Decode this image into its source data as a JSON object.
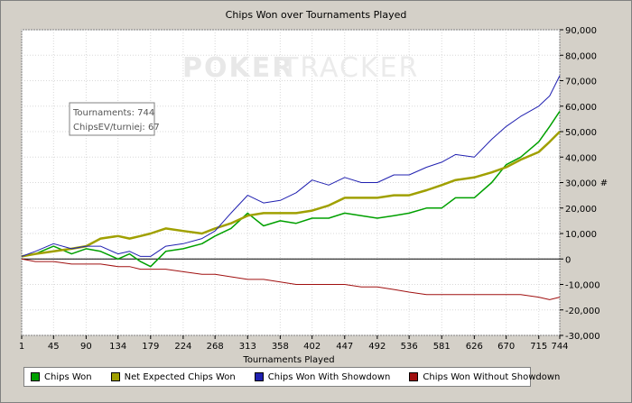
{
  "chart_data": {
    "type": "line",
    "title": "Chips Won over Tournaments Played",
    "xlabel": "Tournaments Played",
    "ylabel": "#",
    "xlim": [
      1,
      744
    ],
    "ylim": [
      -30000,
      90000
    ],
    "x_ticks": [
      "1",
      "45",
      "90",
      "134",
      "179",
      "224",
      "268",
      "313",
      "358",
      "402",
      "447",
      "492",
      "536",
      "581",
      "626",
      "670",
      "715",
      "744"
    ],
    "y_ticks": [
      "90,000",
      "80,000",
      "70,000",
      "60,000",
      "50,000",
      "40,000",
      "30,000",
      "20,000",
      "10,000",
      "0",
      "-10,000",
      "-20,000",
      "-30,000"
    ],
    "watermark": {
      "part1": "POKER",
      "part2": "TRACKER"
    },
    "info_box": {
      "line1": "Tournaments: 744",
      "line2": "ChipsEV/turniej: 67"
    },
    "grid": true,
    "legend_position": "bottom",
    "x": [
      1,
      20,
      45,
      70,
      90,
      110,
      134,
      150,
      165,
      179,
      200,
      224,
      250,
      268,
      290,
      313,
      335,
      358,
      380,
      402,
      425,
      447,
      470,
      492,
      515,
      536,
      560,
      581,
      600,
      626,
      650,
      670,
      690,
      715,
      730,
      744
    ],
    "series": [
      {
        "name": "Chips Won",
        "color": "#00a000",
        "values": [
          1000,
          2000,
          5000,
          2000,
          4000,
          3000,
          0,
          2000,
          -1000,
          -3000,
          3000,
          4000,
          6000,
          9000,
          12000,
          18000,
          13000,
          15000,
          14000,
          16000,
          16000,
          18000,
          17000,
          16000,
          17000,
          18000,
          20000,
          20000,
          24000,
          24000,
          30000,
          37000,
          40000,
          46000,
          52000,
          58000
        ]
      },
      {
        "name": "Net Expected Chips Won",
        "color": "#a0a000",
        "values": [
          1000,
          2000,
          3000,
          4000,
          5000,
          8000,
          9000,
          8000,
          9000,
          10000,
          12000,
          11000,
          10000,
          12000,
          14000,
          17000,
          18000,
          18000,
          18000,
          19000,
          21000,
          24000,
          24000,
          24000,
          25000,
          25000,
          27000,
          29000,
          31000,
          32000,
          34000,
          36000,
          39000,
          42000,
          46000,
          50000
        ]
      },
      {
        "name": "Chips Won With Showdown",
        "color": "#2020b0",
        "values": [
          1000,
          3000,
          6000,
          4000,
          5000,
          5000,
          2000,
          3000,
          1000,
          1000,
          5000,
          6000,
          8000,
          11000,
          18000,
          25000,
          22000,
          23000,
          26000,
          31000,
          29000,
          32000,
          30000,
          30000,
          33000,
          33000,
          36000,
          38000,
          41000,
          40000,
          47000,
          52000,
          56000,
          60000,
          64000,
          72000
        ]
      },
      {
        "name": "Chips Won Without Showdown",
        "color": "#a01010",
        "values": [
          0,
          -1000,
          -1000,
          -2000,
          -2000,
          -2000,
          -3000,
          -3000,
          -4000,
          -4000,
          -4000,
          -5000,
          -6000,
          -6000,
          -7000,
          -8000,
          -8000,
          -9000,
          -10000,
          -10000,
          -10000,
          -10000,
          -11000,
          -11000,
          -12000,
          -13000,
          -14000,
          -14000,
          -14000,
          -14000,
          -14000,
          -14000,
          -14000,
          -15000,
          -16000,
          -15000
        ]
      }
    ]
  }
}
